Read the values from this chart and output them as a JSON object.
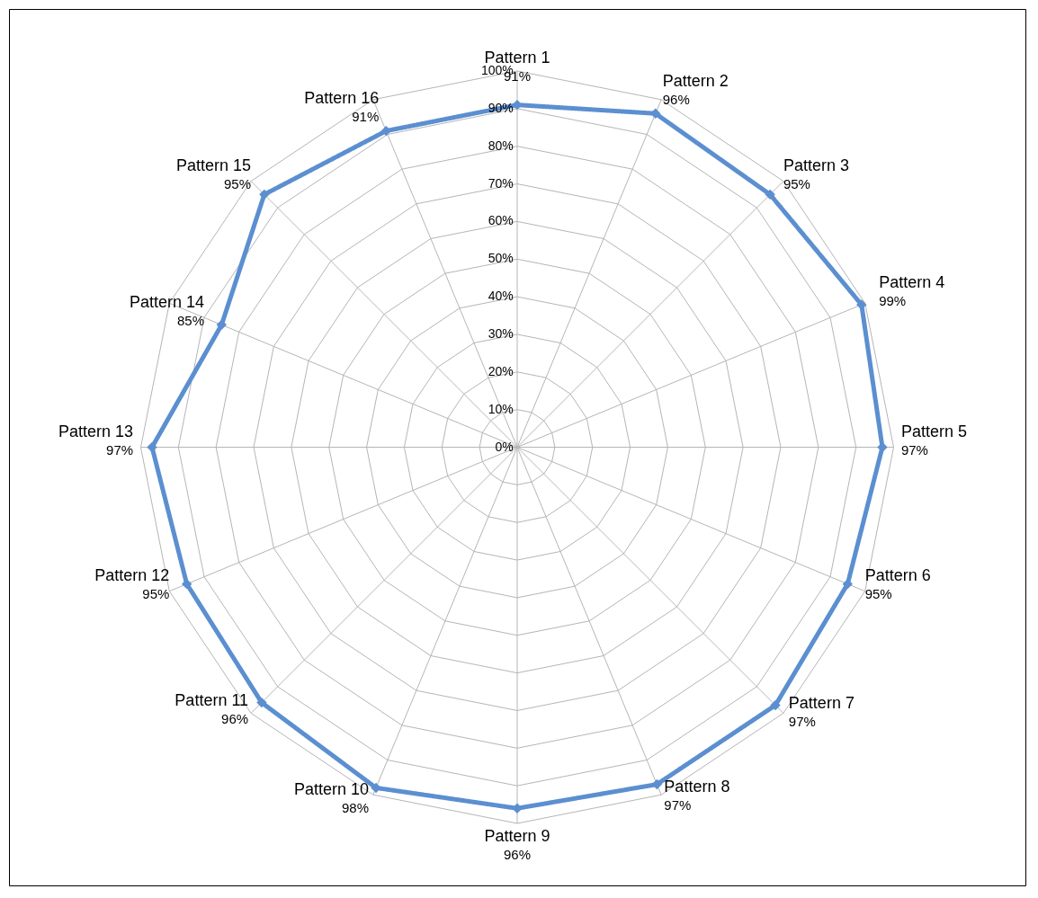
{
  "chart_data": {
    "type": "radar",
    "categories": [
      "Pattern 1",
      "Pattern 2",
      "Pattern 3",
      "Pattern 4",
      "Pattern 5",
      "Pattern 6",
      "Pattern 7",
      "Pattern 8",
      "Pattern 9",
      "Pattern 10",
      "Pattern 11",
      "Pattern 12",
      "Pattern 13",
      "Pattern 14",
      "Pattern 15",
      "Pattern 16"
    ],
    "series": [
      {
        "color": "#5b8fd0",
        "values": [
          91,
          96,
          95,
          99,
          97,
          95,
          97,
          97,
          96,
          98,
          96,
          95,
          97,
          85,
          95,
          91
        ],
        "value_labels": [
          "91%",
          "96%",
          "95%",
          "99%",
          "97%",
          "95%",
          "97%",
          "97%",
          "96%",
          "98%",
          "96%",
          "95%",
          "97%",
          "85%",
          "95%",
          "91%"
        ]
      }
    ],
    "ylim": [
      0,
      100
    ],
    "yticks": [
      {
        "value": 0,
        "label": "0%"
      },
      {
        "value": 10,
        "label": "10%"
      },
      {
        "value": 20,
        "label": "20%"
      },
      {
        "value": 30,
        "label": "30%"
      },
      {
        "value": 40,
        "label": "40%"
      },
      {
        "value": 50,
        "label": "50%"
      },
      {
        "value": 60,
        "label": "60%"
      },
      {
        "value": 70,
        "label": "70%"
      },
      {
        "value": 80,
        "label": "80%"
      },
      {
        "value": 90,
        "label": "90%"
      },
      {
        "value": 100,
        "label": "100%"
      }
    ],
    "grid": true,
    "marker": "diamond",
    "line_style": "solid"
  }
}
